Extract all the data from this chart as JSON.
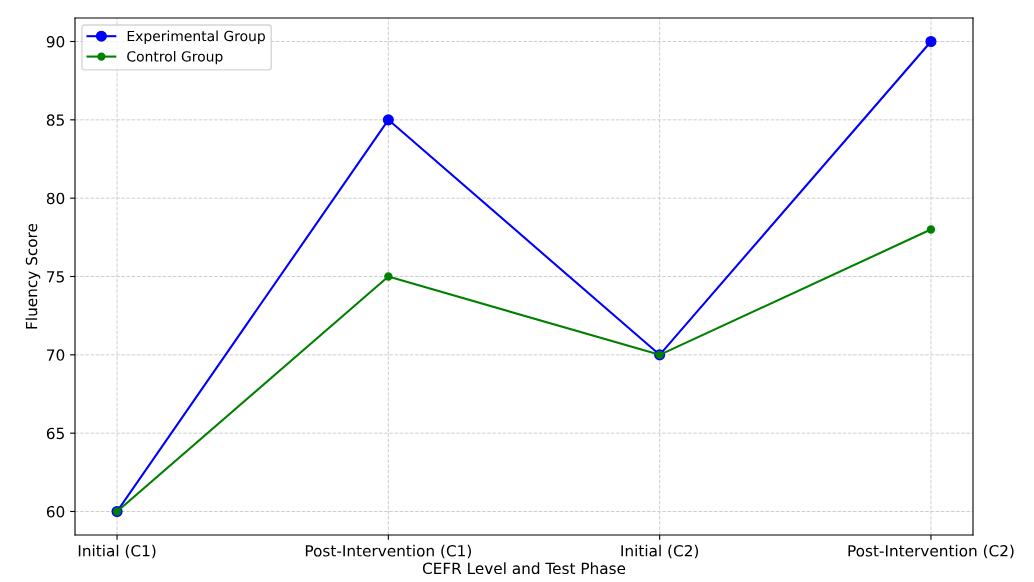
{
  "chart_data": {
    "type": "line",
    "xlabel": "CEFR Level and Test Phase",
    "ylabel": "Fluency Score",
    "categories": [
      "Initial (C1)",
      "Post-Intervention (C1)",
      "Initial (C2)",
      "Post-Intervention (C2)"
    ],
    "series": [
      {
        "name": "Experimental Group",
        "color": "#0000ff",
        "values": [
          60,
          85,
          70,
          90
        ]
      },
      {
        "name": "Control Group",
        "color": "#008000",
        "values": [
          60,
          75,
          70,
          78
        ]
      }
    ],
    "ylim": [
      58.5,
      91.5
    ],
    "yticks": [
      60,
      65,
      70,
      75,
      80,
      85,
      90
    ],
    "grid": true,
    "legend": "top left",
    "marker": "circle",
    "line_style": "solid"
  }
}
